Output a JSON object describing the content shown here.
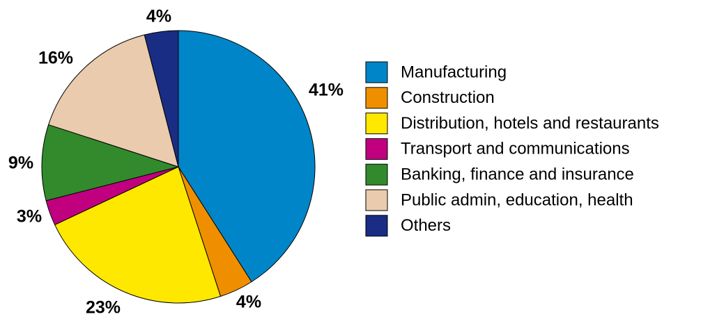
{
  "chart_data": {
    "type": "pie",
    "title": "",
    "legend_position": "right",
    "slices": [
      {
        "label": "Manufacturing",
        "value": 41,
        "value_label": "41%",
        "color": "#0085C8"
      },
      {
        "label": "Construction",
        "value": 4,
        "value_label": "4%",
        "color": "#EF8F00"
      },
      {
        "label": "Distribution, hotels and restaurants",
        "value": 23,
        "value_label": "23%",
        "color": "#FFE800"
      },
      {
        "label": "Transport and communications",
        "value": 3,
        "value_label": "3%",
        "color": "#C0007F"
      },
      {
        "label": "Banking, finance and insurance",
        "value": 9,
        "value_label": "9%",
        "color": "#328A2C"
      },
      {
        "label": "Public admin, education, health",
        "value": 16,
        "value_label": "16%",
        "color": "#EACBAD"
      },
      {
        "label": "Others",
        "value": 4,
        "value_label": "4%",
        "color": "#1A2D84"
      }
    ]
  }
}
